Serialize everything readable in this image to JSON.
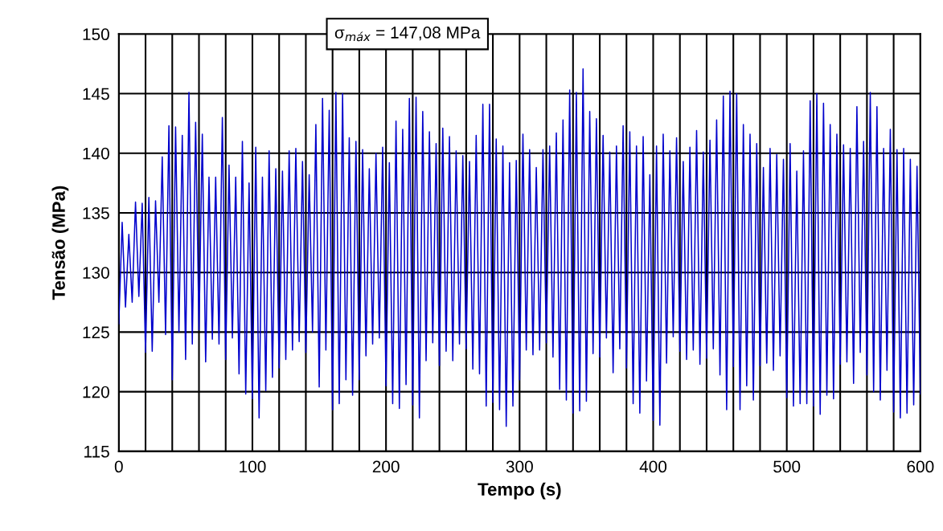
{
  "chart_data": {
    "type": "line",
    "xlabel": "Tempo (s)",
    "ylabel": "Tensão (MPa)",
    "annotations": [
      "σ$_{máx}$ = 147,08 MPa"
    ],
    "xlim": [
      0,
      600
    ],
    "ylim": [
      115,
      150
    ],
    "xticks": [
      0,
      {
        "value": 20,
        "label": null
      },
      {
        "value": 40,
        "label": null
      },
      {
        "value": 60,
        "label": null
      },
      {
        "value": 80,
        "label": null
      },
      100,
      {
        "value": 120,
        "label": null
      },
      {
        "value": 140,
        "label": null
      },
      {
        "value": 160,
        "label": null
      },
      {
        "value": 180,
        "label": null
      },
      200,
      {
        "value": 220,
        "label": null
      },
      {
        "value": 240,
        "label": null
      },
      {
        "value": 260,
        "label": null
      },
      {
        "value": 280,
        "label": null
      },
      300,
      {
        "value": 320,
        "label": null
      },
      {
        "value": 340,
        "label": null
      },
      {
        "value": 360,
        "label": null
      },
      {
        "value": 380,
        "label": null
      },
      400,
      {
        "value": 420,
        "label": null
      },
      {
        "value": 440,
        "label": null
      },
      {
        "value": 460,
        "label": null
      },
      {
        "value": 480,
        "label": null
      },
      500,
      {
        "value": 520,
        "label": null
      },
      {
        "value": 540,
        "label": null
      },
      {
        "value": 560,
        "label": null
      },
      {
        "value": 580,
        "label": null
      },
      600
    ],
    "yticks": [
      115,
      120,
      125,
      130,
      135,
      140,
      145,
      150
    ],
    "grid": true,
    "legend": false,
    "marker": "none",
    "line_style": "solid",
    "series": [
      {
        "color": "#0000cc",
        "x": [
          0,
          2.5,
          5,
          7.5,
          10,
          12.5,
          15,
          17.5,
          20,
          22.5,
          25,
          27.5,
          30,
          32.5,
          35,
          37.5,
          40,
          42.5,
          45,
          47.5,
          50,
          52.5,
          55,
          57.5,
          60,
          62.5,
          65,
          67.5,
          70,
          72.5,
          75,
          77.5,
          80,
          82.5,
          85,
          87.5,
          90,
          92.5,
          95,
          97.5,
          100,
          102.5,
          105,
          107.5,
          110,
          112.5,
          115,
          117.5,
          120,
          122.5,
          125,
          127.5,
          130,
          132.5,
          135,
          137.5,
          140,
          142.5,
          145,
          147.5,
          150,
          152.5,
          155,
          157.5,
          160,
          162.5,
          165,
          167.5,
          170,
          172.5,
          175,
          177.5,
          180,
          182.5,
          185,
          187.5,
          190,
          192.5,
          195,
          197.5,
          200,
          202.5,
          205,
          207.5,
          210,
          212.5,
          215,
          217.5,
          220,
          222.5,
          225,
          227.5,
          230,
          232.5,
          235,
          237.5,
          240,
          242.5,
          245,
          247.5,
          250,
          252.5,
          255,
          257.5,
          260,
          262.5,
          265,
          267.5,
          270,
          272.5,
          275,
          277.5,
          280,
          282.5,
          285,
          287.5,
          290,
          292.5,
          295,
          297.5,
          300,
          302.5,
          305,
          307.5,
          310,
          312.5,
          315,
          317.5,
          320,
          322.5,
          325,
          327.5,
          330,
          332.5,
          335,
          337.5,
          340,
          342.5,
          345,
          347.5,
          350,
          352.5,
          355,
          357.5,
          360,
          362.5,
          365,
          367.5,
          370,
          372.5,
          375,
          377.5,
          380,
          382.5,
          385,
          387.5,
          390,
          392.5,
          395,
          397.5,
          400,
          402.5,
          405,
          407.5,
          410,
          412.5,
          415,
          417.5,
          420,
          422.5,
          425,
          427.5,
          430,
          432.5,
          435,
          437.5,
          440,
          442.5,
          445,
          447.5,
          450,
          452.5,
          455,
          457.5,
          460,
          462.5,
          465,
          467.5,
          470,
          472.5,
          475,
          477.5,
          480,
          482.5,
          485,
          487.5,
          490,
          492.5,
          495,
          497.5,
          500,
          502.5,
          505,
          507.5,
          510,
          512.5,
          515,
          517.5,
          520,
          522.5,
          525,
          527.5,
          530,
          532.5,
          535,
          537.5,
          540,
          542.5,
          545,
          547.5,
          550,
          552.5,
          555,
          557.5,
          560,
          562.5,
          565,
          567.5,
          570,
          572.5,
          575,
          577.5,
          580,
          582.5,
          585,
          587.5,
          590,
          592.5,
          595,
          597.5,
          600
        ],
        "values": [
          125.7,
          134.2,
          127.1,
          133.2,
          127.5,
          135.9,
          128,
          135.8,
          123.3,
          136.3,
          123.4,
          136,
          127.5,
          139.7,
          124.8,
          142.3,
          121,
          142.2,
          125,
          141.5,
          122.7,
          145.1,
          124,
          142.6,
          125.2,
          141.6,
          122.5,
          138,
          124.4,
          138,
          124,
          143,
          122.7,
          139,
          124.5,
          138,
          121.5,
          141,
          119.8,
          137.5,
          119.4,
          140.5,
          117.8,
          138,
          120.1,
          140.2,
          121.2,
          138.7,
          122,
          138.5,
          122.7,
          140.2,
          123.5,
          140.4,
          124.2,
          139.3,
          123.3,
          138.2,
          125,
          142.4,
          120.4,
          144.6,
          123.5,
          143.6,
          118.5,
          145.1,
          119,
          145,
          121,
          141.3,
          119.7,
          141,
          121,
          140.3,
          123,
          138.7,
          124,
          140,
          124.5,
          140.5,
          120.5,
          139.2,
          119,
          142.7,
          118.6,
          142,
          120.6,
          144.6,
          118.9,
          144.7,
          117.8,
          143.5,
          122.6,
          141.8,
          124.1,
          140.8,
          122.2,
          142.1,
          123.4,
          141.4,
          122.6,
          140.2,
          124,
          139.8,
          123.6,
          139.3,
          121.9,
          141.5,
          121.5,
          144.1,
          118.8,
          144.1,
          119.1,
          141.2,
          118.5,
          140.6,
          117.1,
          139.2,
          118.8,
          139.4,
          121,
          141.6,
          123.5,
          140.3,
          123.1,
          138.8,
          123.5,
          140.3,
          124.1,
          140.6,
          122.9,
          141.7,
          120.2,
          142.8,
          119.3,
          145.3,
          118.2,
          145.1,
          118.4,
          147.08,
          119.2,
          143.5,
          123.2,
          142.9,
          122.9,
          141.5,
          124.5,
          140.1,
          121.6,
          140.6,
          123.6,
          142.3,
          122,
          141.8,
          119,
          140.6,
          118.2,
          141.4,
          120.9,
          138.2,
          117.6,
          140.6,
          117.2,
          141.6,
          122.4,
          140.2,
          124.6,
          141.3,
          123.4,
          139.3,
          122.7,
          140.5,
          123.5,
          141.9,
          122.3,
          140.1,
          122.8,
          141.1,
          123.6,
          142.8,
          121.4,
          144.8,
          118.5,
          145.2,
          122.1,
          145,
          118.5,
          142.4,
          120.5,
          141.6,
          119.3,
          140.8,
          122.2,
          138.8,
          122.4,
          140.4,
          121.8,
          139.9,
          123,
          139.5,
          119.5,
          140.8,
          118.8,
          138.5,
          119,
          140.2,
          119,
          144.4,
          118.8,
          145,
          118.1,
          144.2,
          119.7,
          142.4,
          119.4,
          141.6,
          122.3,
          140.7,
          122.5,
          140.4,
          120.7,
          143.9,
          123.3,
          141,
          121.4,
          145.1,
          120,
          143.9,
          119.3,
          140.4,
          121.8,
          142,
          118.3,
          140.3,
          117.8,
          140.4,
          118.2,
          139.5,
          118.9,
          138.9,
          119.8
        ]
      }
    ]
  }
}
